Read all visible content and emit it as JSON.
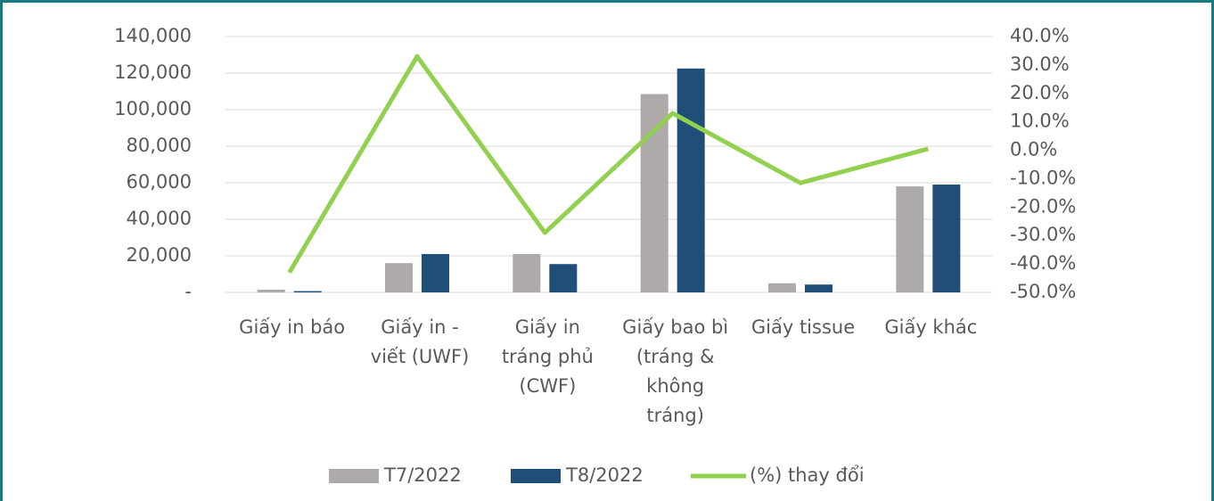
{
  "chart_data": {
    "type": "bar",
    "categories": [
      "Giấy in báo",
      "Giấy in -\nviết (UWF)",
      "Giấy in\ntráng phủ\n(CWF)",
      "Giấy bao bì\n(tráng &\nkhông\ntráng)",
      "Giấy tissue",
      "Giấy khác"
    ],
    "series": [
      {
        "name": "T7/2022",
        "color": "#aeaaaa",
        "values": [
          1500,
          16000,
          21000,
          108500,
          5000,
          58000
        ]
      },
      {
        "name": "T8/2022",
        "color": "#1f4e79",
        "values": [
          700,
          21000,
          15500,
          122500,
          4300,
          59000
        ]
      },
      {
        "name": "(%) thay đổi",
        "color": "#92d050",
        "type": "line",
        "axis": "y2",
        "values": [
          -43,
          33,
          -29,
          13,
          -11.5,
          0.5
        ]
      }
    ],
    "ylim": [
      0,
      140000
    ],
    "yticks": [
      {
        "value": 0,
        "label": "-"
      },
      {
        "value": 20000,
        "label": "20,000"
      },
      {
        "value": 40000,
        "label": "40,000"
      },
      {
        "value": 60000,
        "label": "60,000"
      },
      {
        "value": 80000,
        "label": "80,000"
      },
      {
        "value": 100000,
        "label": "100,000"
      },
      {
        "value": 120000,
        "label": "120,000"
      },
      {
        "value": 140000,
        "label": "140,000"
      }
    ],
    "y2lim": [
      -50,
      40
    ],
    "y2ticks": [
      {
        "value": -50,
        "label": "-50.0%"
      },
      {
        "value": -40,
        "label": "-40.0%"
      },
      {
        "value": -30,
        "label": "-30.0%"
      },
      {
        "value": -20,
        "label": "-20.0%"
      },
      {
        "value": -10,
        "label": "-10.0%"
      },
      {
        "value": 0,
        "label": "0.0%"
      },
      {
        "value": 10,
        "label": "10.0%"
      },
      {
        "value": 20,
        "label": "20.0%"
      },
      {
        "value": 30,
        "label": "30.0%"
      },
      {
        "value": 40,
        "label": "40.0%"
      }
    ],
    "grid": true,
    "legend": "bottom"
  }
}
